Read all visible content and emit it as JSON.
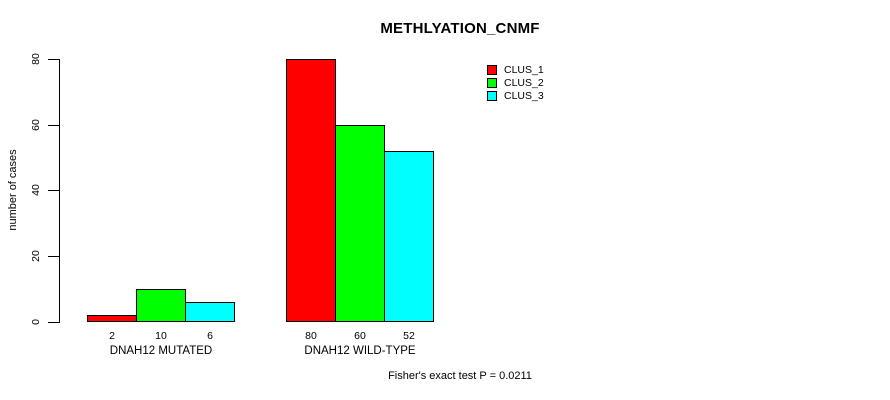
{
  "chart_data": {
    "type": "bar",
    "title": "METHLYATION_CNMF",
    "ylabel": "number of cases",
    "xlabel": "",
    "categories": [
      "DNAH12 MUTATED",
      "DNAH12 WILD-TYPE"
    ],
    "series": [
      {
        "name": "CLUS_1",
        "color": "#FF0000",
        "values": [
          2,
          80
        ]
      },
      {
        "name": "CLUS_2",
        "color": "#00FF00",
        "values": [
          10,
          60
        ]
      },
      {
        "name": "CLUS_3",
        "color": "#00FFFF",
        "values": [
          6,
          52
        ]
      }
    ],
    "ylim": [
      0,
      80
    ],
    "yticks": [
      0,
      20,
      40,
      60,
      80
    ],
    "show_bar_values": true,
    "grid": false,
    "legend_position": "top-right",
    "annotation": "Fisher's exact test P = 0.0211",
    "colors": {
      "axis": "#000000",
      "text": "#000000",
      "background": "#FFFFFF"
    }
  }
}
